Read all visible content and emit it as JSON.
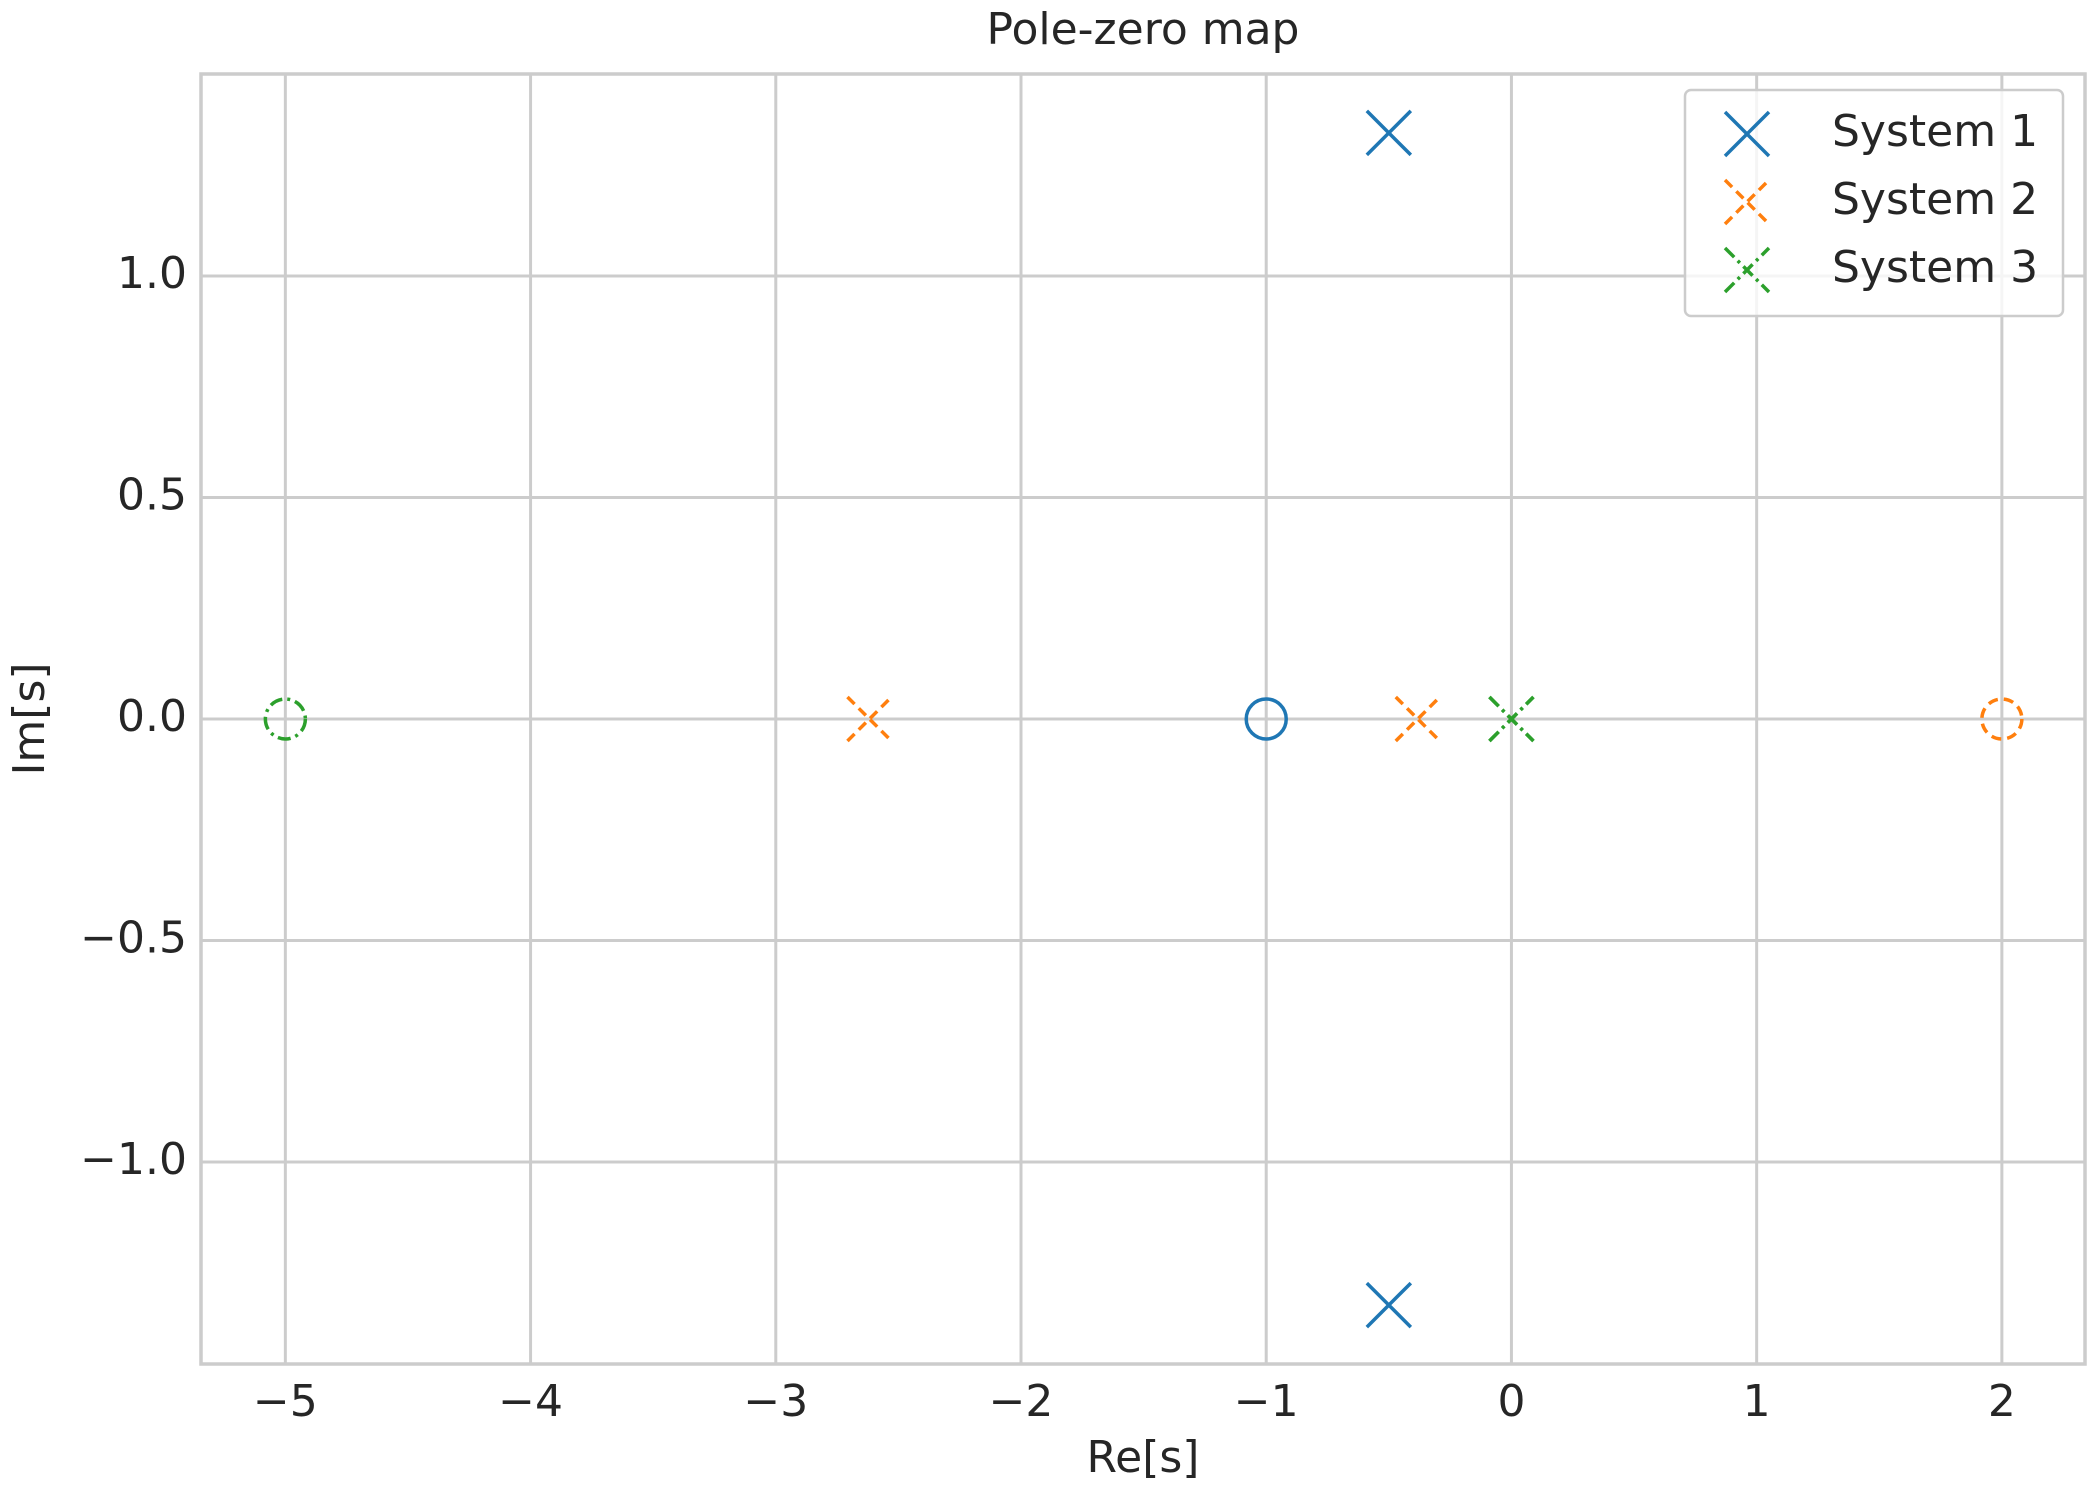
{
  "chart_data": {
    "type": "scatter",
    "title": "Pole-zero map",
    "x_label": "Re[s]",
    "y_label": "Im[s]",
    "xlim": [
      -5.344,
      2.339
    ],
    "ylim": [
      -1.456,
      1.456
    ],
    "xticks": [
      {
        "value": -5,
        "label": "−5"
      },
      {
        "value": -4,
        "label": "−4"
      },
      {
        "value": -3,
        "label": "−3"
      },
      {
        "value": -2,
        "label": "−2"
      },
      {
        "value": -1,
        "label": "−1"
      },
      0,
      1,
      2
    ],
    "yticks": [
      {
        "value": -1.0,
        "label": "−1.0"
      },
      {
        "value": -0.5,
        "label": "−0.5"
      },
      {
        "value": 0.0,
        "label": "0.0"
      },
      0.5,
      {
        "value": 1.0,
        "label": "1.0"
      }
    ],
    "grid": true,
    "legend": "upper right",
    "series": [
      {
        "name": "System 1",
        "color": "#1f77b4",
        "linestyle": "solid",
        "poles": {
          "x": [
            -0.5,
            -0.5
          ],
          "y": [
            1.323,
            -1.323
          ]
        },
        "zeros": {
          "x": [
            -1
          ],
          "y": [
            0
          ]
        }
      },
      {
        "name": "System 2",
        "color": "#ff7f0e",
        "linestyle": "dashed",
        "poles": {
          "x": [
            -2.618,
            -0.382
          ],
          "y": [
            0,
            0
          ]
        },
        "zeros": {
          "x": [
            2
          ],
          "y": [
            0
          ]
        }
      },
      {
        "name": "System 3",
        "color": "#2ca02c",
        "linestyle": "dashdot",
        "poles": {
          "x": [
            0,
            0
          ],
          "y": [
            0,
            0
          ]
        },
        "zeros": {
          "x": [
            -5
          ],
          "y": [
            0
          ]
        }
      }
    ]
  }
}
